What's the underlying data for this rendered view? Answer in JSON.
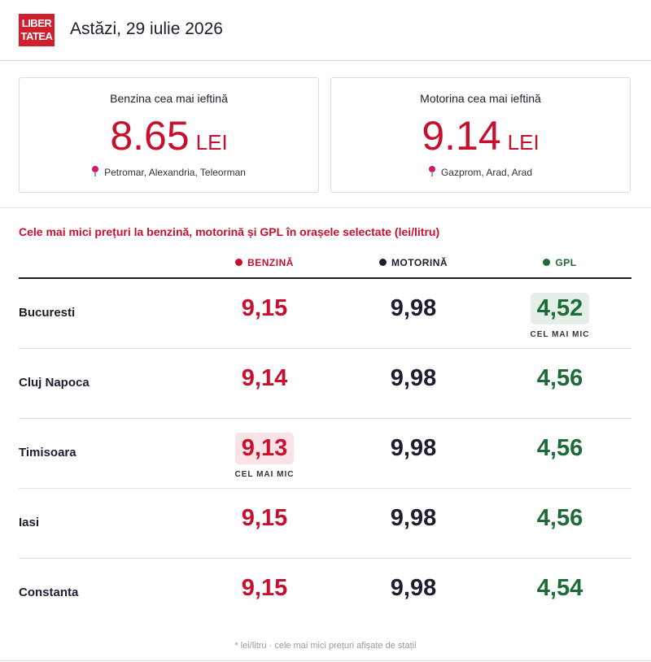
{
  "header": {
    "logo_line1": "LIBER",
    "logo_line2": "TATEA",
    "date": "Astăzi, 29 iulie 2026"
  },
  "cards": [
    {
      "title": "Benzina cea mai ieftină",
      "price": "8.65",
      "unit": "LEI",
      "location": "Petromar, Alexandria, Teleorman"
    },
    {
      "title": "Motorina cea mai ieftină",
      "price": "9.14",
      "unit": "LEI",
      "location": "Gazprom, Arad, Arad"
    }
  ],
  "table": {
    "title": "Cele mai mici prețuri la benzină, motorină și GPL în orașele selectate (lei/litru)",
    "columns": [
      {
        "label": "BENZINĂ",
        "color": "#c8102e"
      },
      {
        "label": "MOTORINĂ",
        "color": "#1d1d2e"
      },
      {
        "label": "GPL",
        "color": "#1e6b3a"
      }
    ],
    "best_label": "CEL MAI MIC",
    "rows": [
      {
        "city": "Bucuresti",
        "benzina": "9,15",
        "motorina": "9,98",
        "gpl": "4,52"
      },
      {
        "city": "Cluj Napoca",
        "benzina": "9,14",
        "motorina": "9,98",
        "gpl": "4,56"
      },
      {
        "city": "Timisoara",
        "benzina": "9,13",
        "motorina": "9,98",
        "gpl": "4,56"
      },
      {
        "city": "Iasi",
        "benzina": "9,15",
        "motorina": "9,98",
        "gpl": "4,56"
      },
      {
        "city": "Constanta",
        "benzina": "9,15",
        "motorina": "9,98",
        "gpl": "4,54"
      }
    ]
  },
  "footnote": "* lei/litru · cele mai mici prețuri afișate de stații"
}
